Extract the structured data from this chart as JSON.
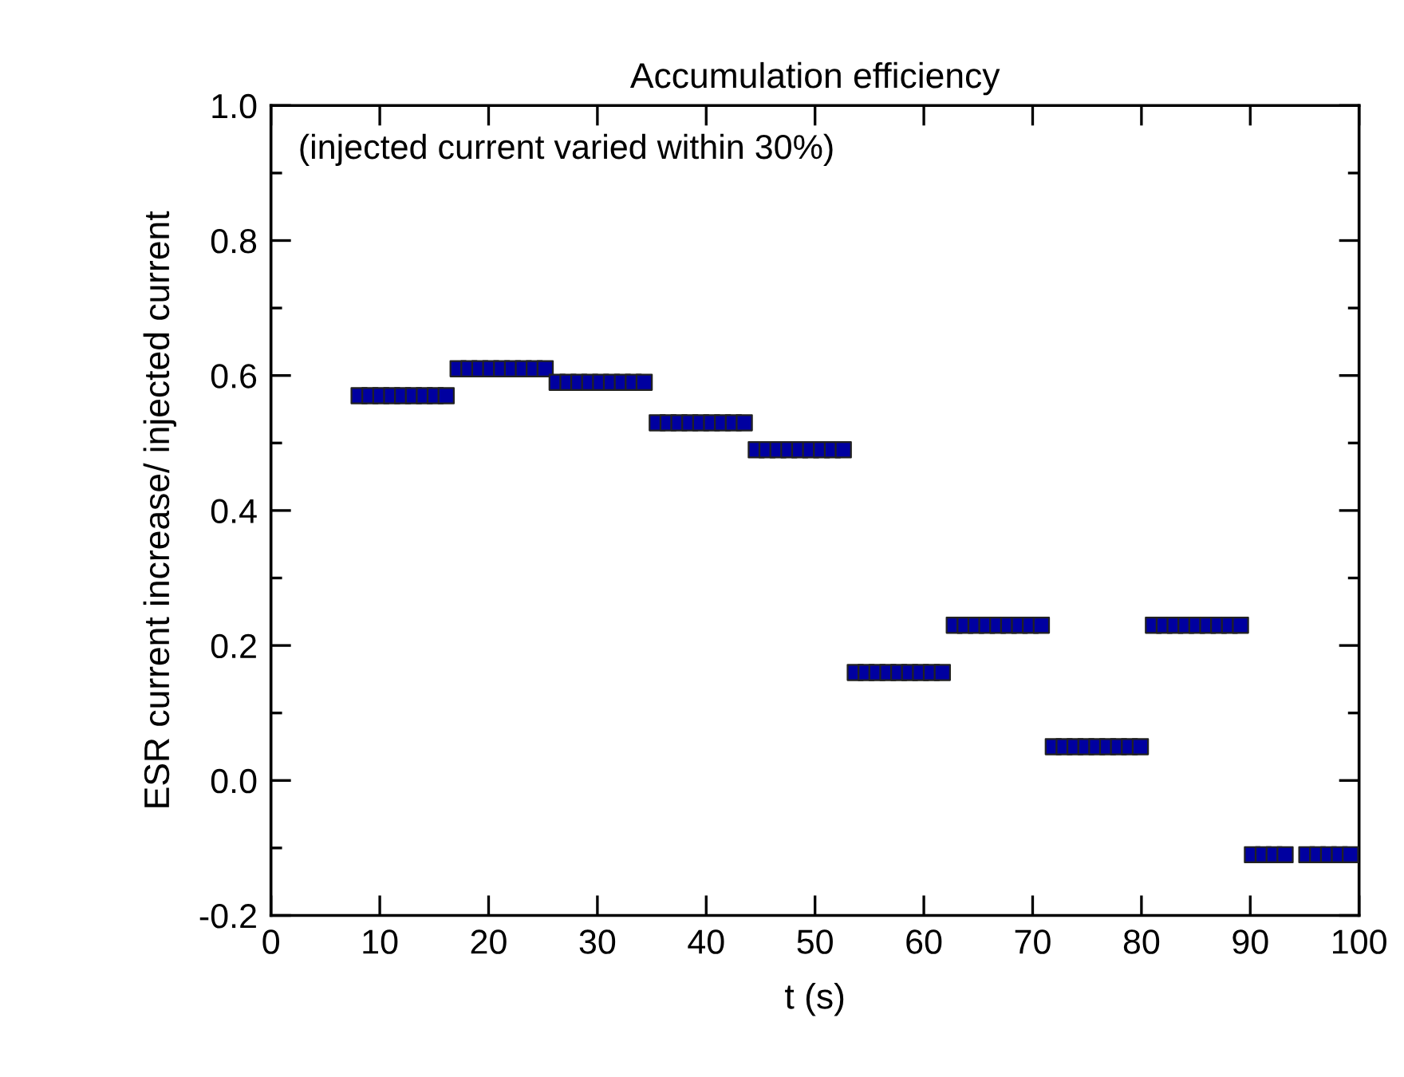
{
  "chart_data": {
    "type": "scatter",
    "title": "Accumulation efficiency",
    "xlabel": "t (s)",
    "ylabel": "ESR current increase/ injected current",
    "annotations": [
      "(injected current varied within 30%)"
    ],
    "marker": "square",
    "grid": false,
    "xlim": [
      0,
      100
    ],
    "xticks": [
      0,
      10,
      20,
      30,
      40,
      50,
      60,
      70,
      80,
      90,
      100
    ],
    "ylim": [
      -0.2,
      1.0
    ],
    "yticks": [
      {
        "value": -0.2,
        "label": "-0.2"
      },
      {
        "value": -0.1,
        "label": null
      },
      {
        "value": 0,
        "label": "0.0"
      },
      {
        "value": 0.1,
        "label": null
      },
      {
        "value": 0.2,
        "label": "0.2"
      },
      {
        "value": 0.3,
        "label": null
      },
      {
        "value": 0.4,
        "label": "0.4"
      },
      {
        "value": 0.5,
        "label": null
      },
      {
        "value": 0.6,
        "label": "0.6"
      },
      {
        "value": 0.7,
        "label": null
      },
      {
        "value": 0.8,
        "label": "0.8"
      },
      {
        "value": 0.9,
        "label": null
      },
      {
        "value": 1.0,
        "label": "1.0"
      }
    ],
    "series": [
      {
        "color": "#0000a0",
        "x": [
          8.1,
          9.1,
          10.1,
          11.1,
          12.1,
          13.1,
          14.1,
          15.1,
          16.1
        ],
        "values": [
          0.57,
          0.57,
          0.57,
          0.57,
          0.57,
          0.57,
          0.57,
          0.57,
          0.57
        ]
      },
      {
        "color": "#0000a0",
        "x": [
          17.2,
          18.2,
          19.2,
          20.2,
          21.2,
          22.2,
          23.2,
          24.2,
          25.2
        ],
        "values": [
          0.61,
          0.61,
          0.61,
          0.61,
          0.61,
          0.61,
          0.61,
          0.61,
          0.61
        ]
      },
      {
        "color": "#0000a0",
        "x": [
          26.3,
          27.3,
          28.3,
          29.3,
          30.3,
          31.3,
          32.3,
          33.3,
          34.3
        ],
        "values": [
          0.59,
          0.59,
          0.59,
          0.59,
          0.59,
          0.59,
          0.59,
          0.59,
          0.59
        ]
      },
      {
        "color": "#0000a0",
        "x": [
          35.5,
          36.5,
          37.5,
          38.5,
          39.5,
          40.5,
          41.5,
          42.5,
          43.5
        ],
        "values": [
          0.53,
          0.53,
          0.53,
          0.53,
          0.53,
          0.53,
          0.53,
          0.53,
          0.53
        ]
      },
      {
        "color": "#0000a0",
        "x": [
          44.6,
          45.6,
          46.6,
          47.6,
          48.6,
          49.6,
          50.6,
          51.6,
          52.6
        ],
        "values": [
          0.49,
          0.49,
          0.49,
          0.49,
          0.49,
          0.49,
          0.49,
          0.49,
          0.49
        ]
      },
      {
        "color": "#0000a0",
        "x": [
          53.7,
          54.7,
          55.7,
          56.7,
          57.7,
          58.7,
          59.7,
          60.7,
          61.7
        ],
        "values": [
          0.16,
          0.16,
          0.16,
          0.16,
          0.16,
          0.16,
          0.16,
          0.16,
          0.16
        ]
      },
      {
        "color": "#0000a0",
        "x": [
          62.8,
          63.8,
          64.8,
          65.8,
          66.8,
          67.8,
          68.8,
          69.8,
          70.8
        ],
        "values": [
          0.23,
          0.23,
          0.23,
          0.23,
          0.23,
          0.23,
          0.23,
          0.23,
          0.23
        ]
      },
      {
        "color": "#0000a0",
        "x": [
          71.9,
          72.9,
          73.9,
          74.9,
          75.9,
          76.9,
          77.9,
          78.9,
          79.9
        ],
        "values": [
          0.05,
          0.05,
          0.05,
          0.05,
          0.05,
          0.05,
          0.05,
          0.05,
          0.05
        ]
      },
      {
        "color": "#0000a0",
        "x": [
          81.1,
          82.1,
          83.1,
          84.1,
          85.1,
          86.1,
          87.1,
          88.1,
          89.1
        ],
        "values": [
          0.23,
          0.23,
          0.23,
          0.23,
          0.23,
          0.23,
          0.23,
          0.23,
          0.23
        ]
      },
      {
        "color": "#0000a0",
        "x": [
          90.2,
          91.2,
          92.2,
          93.2
        ],
        "values": [
          -0.11,
          -0.11,
          -0.11,
          -0.11
        ]
      },
      {
        "color": "#0000a0",
        "x": [
          95.2,
          96.2,
          97.2,
          98.2,
          99.2
        ],
        "values": [
          -0.11,
          -0.11,
          -0.11,
          -0.11,
          -0.11
        ]
      }
    ]
  }
}
